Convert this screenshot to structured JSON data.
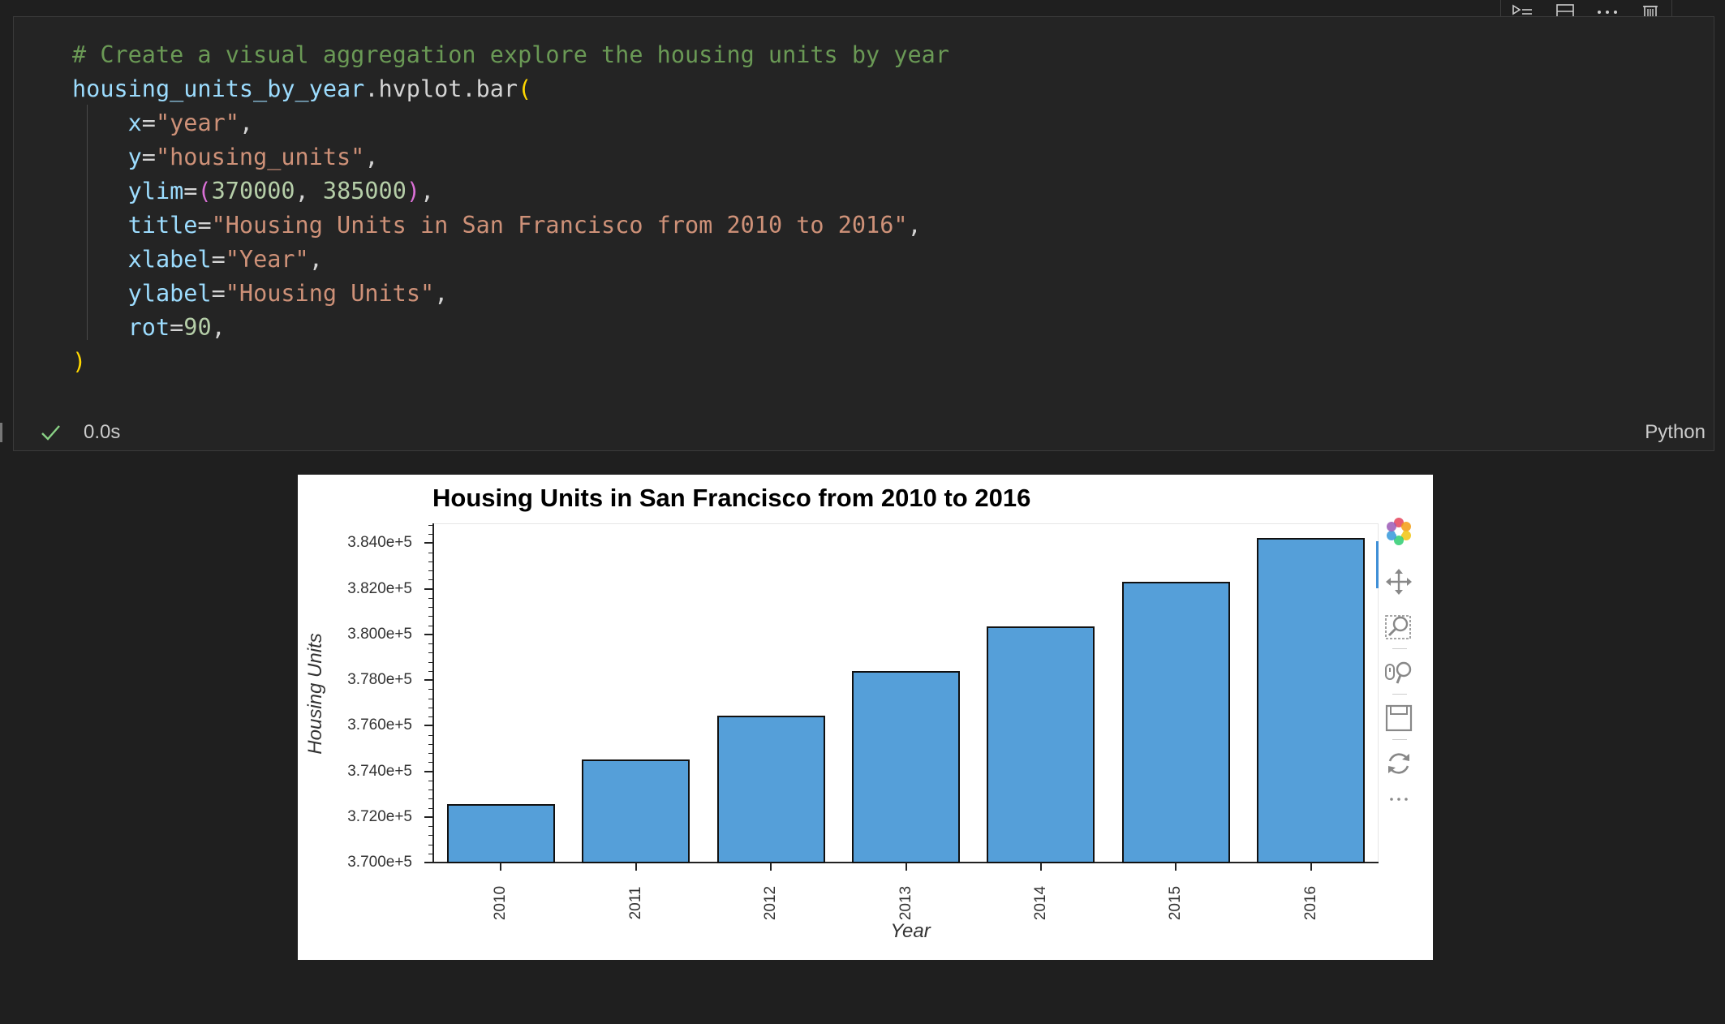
{
  "code_cell": {
    "lines": [
      [
        {
          "t": "# Create a visual aggregation explore the housing units by year",
          "c": "comment"
        }
      ],
      [
        {
          "t": "housing_units_by_year",
          "c": "var"
        },
        {
          "t": ".hvplot.bar",
          "c": "plain"
        },
        {
          "t": "(",
          "c": "br1"
        }
      ],
      [
        {
          "t": "    x",
          "c": "var"
        },
        {
          "t": "=",
          "c": "plain"
        },
        {
          "t": "\"year\"",
          "c": "str"
        },
        {
          "t": ",",
          "c": "plain"
        }
      ],
      [
        {
          "t": "    y",
          "c": "var"
        },
        {
          "t": "=",
          "c": "plain"
        },
        {
          "t": "\"housing_units\"",
          "c": "str"
        },
        {
          "t": ",",
          "c": "plain"
        }
      ],
      [
        {
          "t": "    ylim",
          "c": "var"
        },
        {
          "t": "=",
          "c": "plain"
        },
        {
          "t": "(",
          "c": "br2"
        },
        {
          "t": "370000",
          "c": "num"
        },
        {
          "t": ", ",
          "c": "plain"
        },
        {
          "t": "385000",
          "c": "num"
        },
        {
          "t": ")",
          "c": "br2"
        },
        {
          "t": ",",
          "c": "plain"
        }
      ],
      [
        {
          "t": "    title",
          "c": "var"
        },
        {
          "t": "=",
          "c": "plain"
        },
        {
          "t": "\"Housing Units in San Francisco from 2010 to 2016\"",
          "c": "str"
        },
        {
          "t": ",",
          "c": "plain"
        }
      ],
      [
        {
          "t": "    xlabel",
          "c": "var"
        },
        {
          "t": "=",
          "c": "plain"
        },
        {
          "t": "\"Year\"",
          "c": "str"
        },
        {
          "t": ",",
          "c": "plain"
        }
      ],
      [
        {
          "t": "    ylabel",
          "c": "var"
        },
        {
          "t": "=",
          "c": "plain"
        },
        {
          "t": "\"Housing Units\"",
          "c": "str"
        },
        {
          "t": ",",
          "c": "plain"
        }
      ],
      [
        {
          "t": "    rot",
          "c": "var"
        },
        {
          "t": "=",
          "c": "plain"
        },
        {
          "t": "90",
          "c": "num"
        },
        {
          "t": ",",
          "c": "plain"
        }
      ],
      [
        {
          "t": ")",
          "c": "br1"
        }
      ]
    ],
    "exec_time": "0.0s",
    "language": "Python"
  },
  "cell_toolbar": {
    "icons": [
      "run-below-icon",
      "split-cell-icon",
      "more-actions-icon",
      "delete-cell-icon"
    ]
  },
  "plot_toolbar": {
    "icons": [
      "bokeh-logo-icon",
      "pan-icon",
      "box-zoom-icon",
      "wheel-zoom-icon",
      "save-icon",
      "reset-icon",
      "more-icon"
    ]
  },
  "chart_data": {
    "type": "bar",
    "title": "Housing Units in San Francisco from 2010 to 2016",
    "xlabel": "Year",
    "ylabel": "Housing Units",
    "categories": [
      "2010",
      "2011",
      "2012",
      "2013",
      "2014",
      "2015",
      "2016"
    ],
    "values": [
      372560,
      374507,
      376454,
      378401,
      380348,
      382295,
      384242
    ],
    "ylim": [
      370000,
      385000
    ],
    "yticks": [
      "3.700e+5",
      "3.720e+5",
      "3.740e+5",
      "3.760e+5",
      "3.780e+5",
      "3.800e+5",
      "3.820e+5",
      "3.840e+5"
    ],
    "ytick_values": [
      370000,
      372000,
      374000,
      376000,
      378000,
      380000,
      382000,
      384000
    ],
    "bar_color": "#559fd9",
    "grid": false,
    "xtick_rotation": 90
  }
}
